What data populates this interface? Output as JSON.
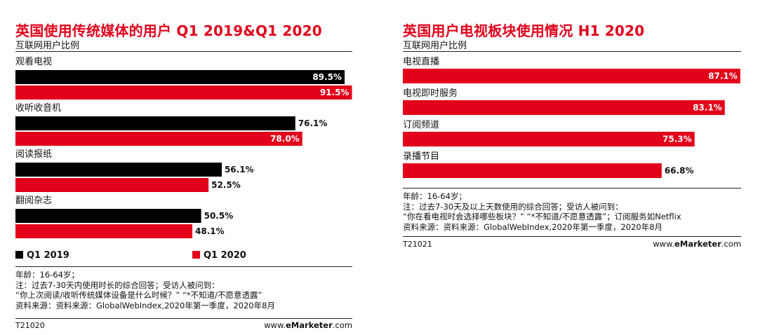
{
  "colors": {
    "accent": "#e2001a",
    "dark": "#000000"
  },
  "left": {
    "title": "英国使用传统媒体的用户 Q1 2019&Q1 2020",
    "subtitle": "互联网用户比例",
    "legend": [
      "Q1 2019",
      "Q1 2020"
    ],
    "notes": [
      "年龄：16-64岁；",
      "注：过去7-30天内使用时长的综合回答；受访人被问到：",
      "“你上次阅读/收听传统媒体设备是什么时候？” “*不知道/不愿意透露”",
      "资料来源：资料来源：GlobalWebIndex,2020年第一季度，2020年8月"
    ],
    "code": "T21020",
    "brand": {
      "pre": "www.",
      "bold": "eMarketer",
      "post": ".com"
    }
  },
  "right": {
    "title": "英国用户电视板块使用情况 H1 2020",
    "subtitle": "互联网用户比例",
    "notes": [
      "年龄：16-64岁；",
      "注：过去7-30天及以上天数使用的综合回答；受访人被问到：",
      "“你在看电视时会选择哪些板块？” “*不知道/不愿意透露”；订阅服务如Netflix",
      "资料来源：资料来源：GlobalWebIndex,2020年第一季度，2020年8月"
    ],
    "code": "T21021",
    "brand": {
      "pre": "www.",
      "bold": "eMarketer",
      "post": ".com"
    }
  },
  "chart_data": [
    {
      "type": "bar",
      "orientation": "horizontal",
      "title": "英国使用传统媒体的用户 Q1 2019&Q1 2020",
      "subtitle": "互联网用户比例",
      "categories": [
        "观看电视",
        "收听收音机",
        "阅读报纸",
        "翻阅杂志"
      ],
      "series": [
        {
          "name": "Q1 2019",
          "color": "#000000",
          "values": [
            89.5,
            76.1,
            56.1,
            50.5
          ],
          "labels": [
            "89.5%",
            "76.1%",
            "56.1%",
            "50.5%"
          ]
        },
        {
          "name": "Q1 2020",
          "color": "#e2001a",
          "values": [
            91.5,
            78.0,
            52.5,
            48.1
          ],
          "labels": [
            "91.5%",
            "78.0%",
            "52.5%",
            "48.1%"
          ]
        }
      ],
      "xlim": [
        0,
        100
      ],
      "grid": false,
      "legend": "bottom"
    },
    {
      "type": "bar",
      "orientation": "horizontal",
      "title": "英国用户电视板块使用情况 H1 2020",
      "subtitle": "互联网用户比例",
      "categories": [
        "电视直播",
        "电视即时服务",
        "订阅频道",
        "录播节目"
      ],
      "series": [
        {
          "color": "#e2001a",
          "values": [
            87.1,
            83.1,
            75.3,
            66.8
          ],
          "labels": [
            "87.1%",
            "83.1%",
            "75.3%",
            "66.8%"
          ]
        }
      ],
      "xlim": [
        0,
        100
      ],
      "grid": false
    }
  ]
}
